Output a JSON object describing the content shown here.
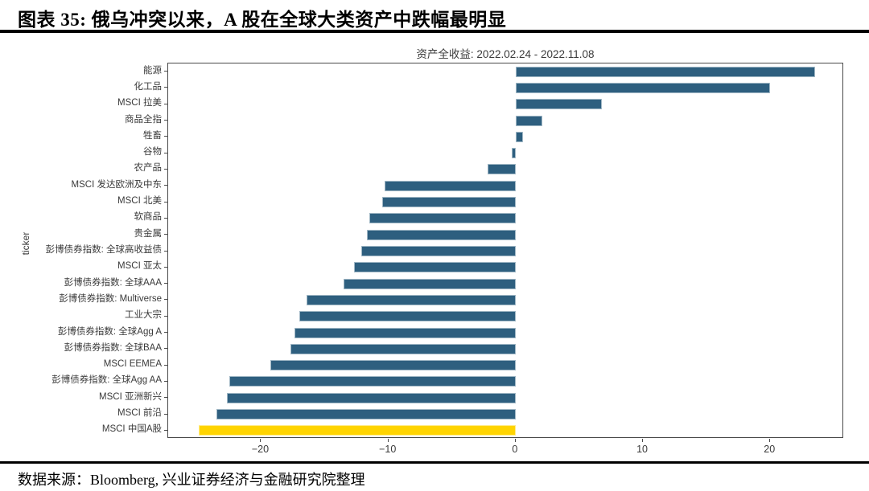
{
  "header": {
    "title": "图表 35:  俄乌冲突以来，A 股在全球大类资产中跌幅最明显"
  },
  "footer": {
    "source": "数据来源：Bloomberg, 兴业证券经济与金融研究院整理"
  },
  "chart_data": {
    "type": "bar",
    "orientation": "horizontal",
    "title": "资产全收益: 2022.02.24 - 2022.11.08",
    "ylabel": "ticker",
    "xlim": [
      -27.3,
      25.8
    ],
    "xticks": [
      -20,
      -10,
      0,
      10,
      20
    ],
    "grid": false,
    "legend": "none",
    "bar_color": "#2e5f7f",
    "highlight_color": "#ffd400",
    "highlight_index": 22,
    "highlight_category": "MSCI 中国A股",
    "categories": [
      "能源",
      "化工品",
      "MSCI 拉美",
      "商品全指",
      "牲畜",
      "谷物",
      "农产品",
      "MSCI 发达欧洲及中东",
      "MSCI 北美",
      "软商品",
      "贵金属",
      "彭博债券指数: 全球高收益债",
      "MSCI 亚太",
      "彭博债券指数: 全球AAA",
      "彭博债券指数: Multiverse",
      "工业大宗",
      "彭博债券指数: 全球Agg A",
      "彭博债券指数: 全球BAA",
      "MSCI EEMEA",
      "彭博债券指数: 全球Agg AA",
      "MSCI 亚洲新兴",
      "MSCI 前沿",
      "MSCI 中国A股"
    ],
    "values": [
      23.5,
      20.0,
      6.8,
      2.1,
      0.6,
      -0.3,
      -2.2,
      -10.3,
      -10.5,
      -11.5,
      -11.7,
      -12.1,
      -12.7,
      -13.5,
      -16.4,
      -17.0,
      -17.4,
      -17.7,
      -19.3,
      -22.5,
      -22.7,
      -23.5,
      -24.9
    ]
  }
}
